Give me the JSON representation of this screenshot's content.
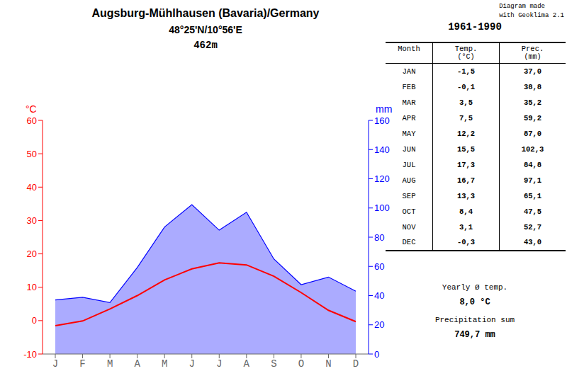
{
  "chart_data": {
    "type": "line",
    "title": "Augsburg-Mühlhausen (Bavaria)/Germany",
    "subtitle": [
      "48°25'N/10°56'E",
      "462m"
    ],
    "annotations": [
      "Diagram made\nwith Geoklima 2.1"
    ],
    "categories": [
      "J",
      "F",
      "M",
      "A",
      "M",
      "J",
      "J",
      "A",
      "S",
      "O",
      "N",
      "D"
    ],
    "series": [
      {
        "type": "line",
        "color": "#ff0000",
        "values": [
          -1.5,
          -0.1,
          3.5,
          7.5,
          12.2,
          15.5,
          17.3,
          16.7,
          13.3,
          8.4,
          3.1,
          -0.3
        ]
      },
      {
        "type": "area",
        "color": "#0000ff",
        "axis": "y2",
        "values": [
          37.0,
          38.8,
          35.2,
          59.2,
          87.0,
          102.3,
          84.8,
          97.1,
          65.1,
          47.5,
          52.7,
          43.0
        ]
      }
    ],
    "y_label": "°C",
    "y2_label": "mm",
    "ylim": [
      -10,
      60
    ],
    "yticks": [
      -10,
      0,
      10,
      20,
      30,
      40,
      50,
      60
    ],
    "y2lim": [
      0,
      160
    ],
    "y2ticks": [
      0,
      20,
      40,
      60,
      80,
      100,
      120,
      140,
      160
    ],
    "grid": false,
    "table": {
      "title": "1961-1990",
      "columns": [
        "Month",
        "Temp.",
        "Prec."
      ],
      "units": [
        "(°C)",
        "(mm)"
      ],
      "months": [
        "JAN",
        "FEB",
        "MAR",
        "APR",
        "MAY",
        "JUN",
        "JUL",
        "AUG",
        "SEP",
        "OCT",
        "NOV",
        "DEC"
      ],
      "temp": [
        "-1,5",
        "-0,1",
        "3,5",
        "7,5",
        "12,2",
        "15,5",
        "17,3",
        "16,7",
        "13,3",
        "8,4",
        "3,1",
        "-0,3"
      ],
      "prec": [
        "37,0",
        "38,8",
        "35,2",
        "59,2",
        "87,0",
        "102,3",
        "84,8",
        "97,1",
        "65,1",
        "47,5",
        "52,7",
        "43,0"
      ]
    },
    "summary": [
      {
        "label": "Yearly Ø temp.",
        "value": "8,0 °C"
      },
      {
        "label": "Precipitation sum",
        "value": "749,7 mm"
      }
    ]
  }
}
